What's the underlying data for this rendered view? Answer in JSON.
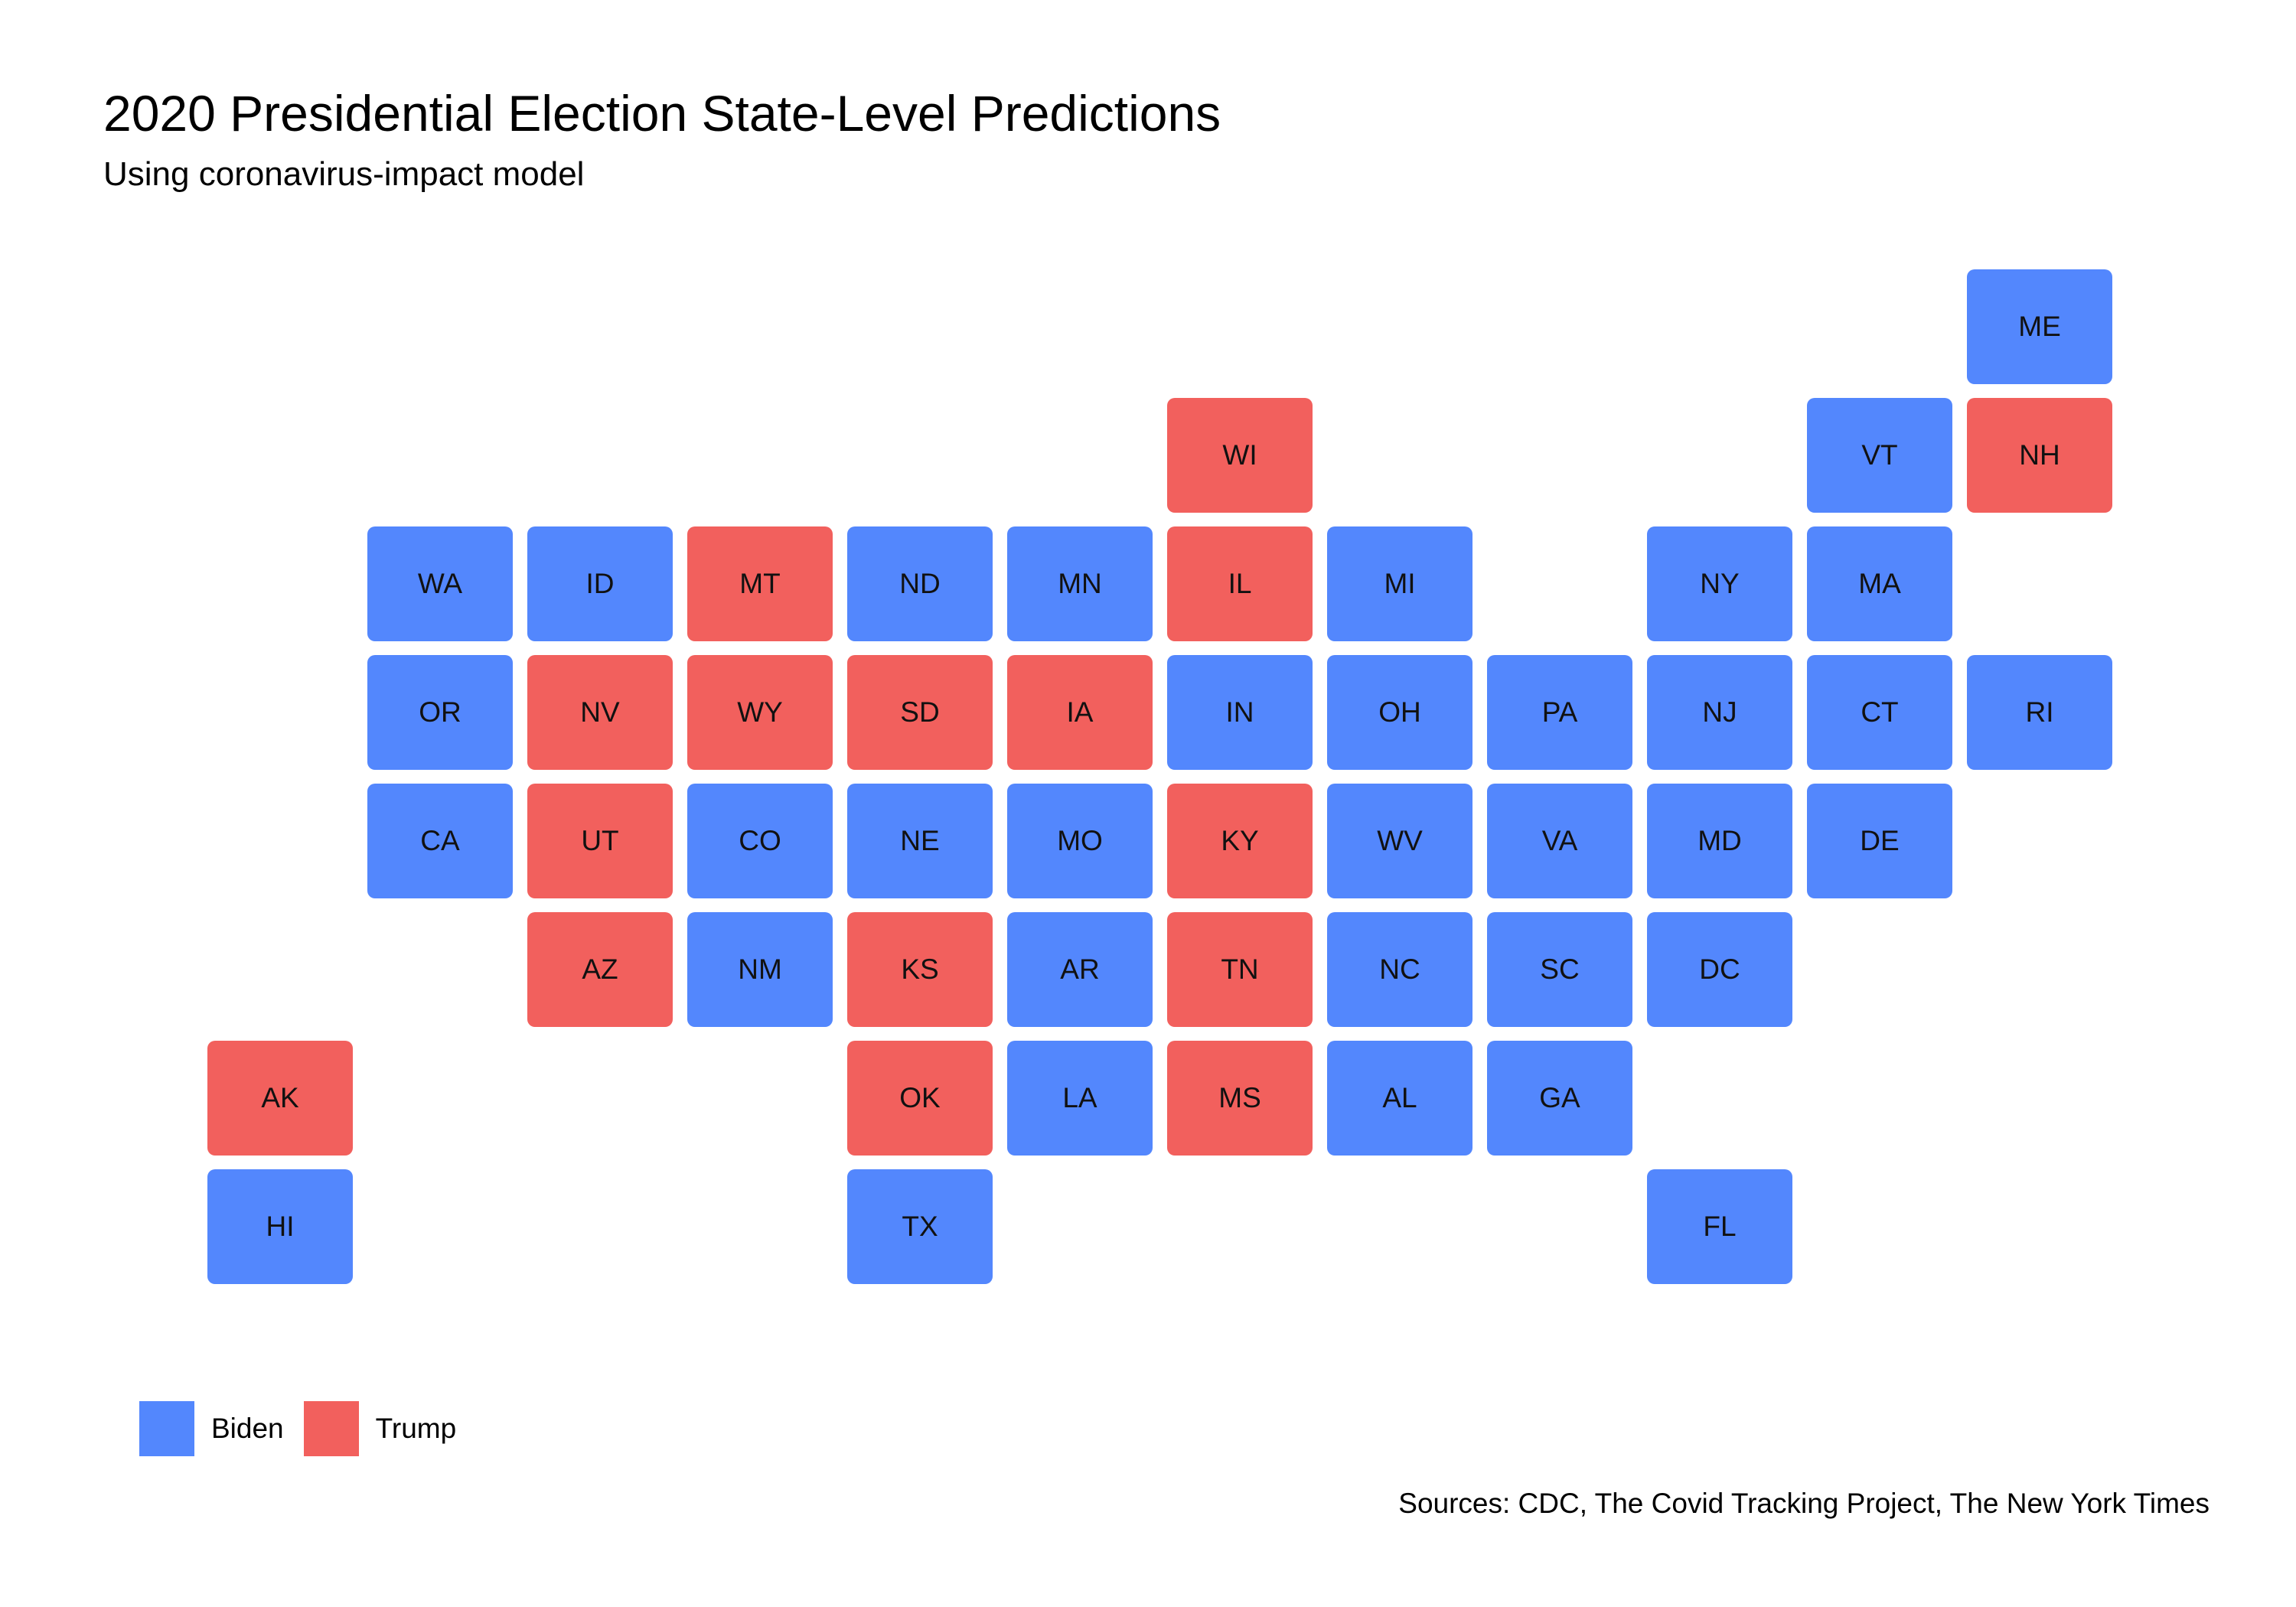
{
  "title": "2020 Presidential Election State-Level Predictions",
  "subtitle": "Using coronavirus-impact model",
  "caption": "Sources: CDC, The Covid Tracking Project, The New York Times",
  "colors": {
    "Biden": "#5387FD",
    "Trump": "#F2605D"
  },
  "legend": {
    "items": [
      {
        "label": "Biden",
        "color": "#5387FD"
      },
      {
        "label": "Trump",
        "color": "#F2605D"
      }
    ]
  },
  "chart_data": {
    "type": "tile-grid-map",
    "title": "2020 Presidential Election State-Level Predictions",
    "subtitle": "Using coronavirus-impact model",
    "legend_position": "bottom-left",
    "grid": {
      "columns": 12,
      "rows": 8
    },
    "tiles": [
      {
        "state": "ME",
        "col": 12,
        "row": 1,
        "winner": "Biden"
      },
      {
        "state": "WI",
        "col": 7,
        "row": 2,
        "winner": "Trump"
      },
      {
        "state": "VT",
        "col": 11,
        "row": 2,
        "winner": "Biden"
      },
      {
        "state": "NH",
        "col": 12,
        "row": 2,
        "winner": "Trump"
      },
      {
        "state": "WA",
        "col": 2,
        "row": 3,
        "winner": "Biden"
      },
      {
        "state": "ID",
        "col": 3,
        "row": 3,
        "winner": "Biden"
      },
      {
        "state": "MT",
        "col": 4,
        "row": 3,
        "winner": "Trump"
      },
      {
        "state": "ND",
        "col": 5,
        "row": 3,
        "winner": "Biden"
      },
      {
        "state": "MN",
        "col": 6,
        "row": 3,
        "winner": "Biden"
      },
      {
        "state": "IL",
        "col": 7,
        "row": 3,
        "winner": "Trump"
      },
      {
        "state": "MI",
        "col": 8,
        "row": 3,
        "winner": "Biden"
      },
      {
        "state": "NY",
        "col": 10,
        "row": 3,
        "winner": "Biden"
      },
      {
        "state": "MA",
        "col": 11,
        "row": 3,
        "winner": "Biden"
      },
      {
        "state": "OR",
        "col": 2,
        "row": 4,
        "winner": "Biden"
      },
      {
        "state": "NV",
        "col": 3,
        "row": 4,
        "winner": "Trump"
      },
      {
        "state": "WY",
        "col": 4,
        "row": 4,
        "winner": "Trump"
      },
      {
        "state": "SD",
        "col": 5,
        "row": 4,
        "winner": "Trump"
      },
      {
        "state": "IA",
        "col": 6,
        "row": 4,
        "winner": "Trump"
      },
      {
        "state": "IN",
        "col": 7,
        "row": 4,
        "winner": "Biden"
      },
      {
        "state": "OH",
        "col": 8,
        "row": 4,
        "winner": "Biden"
      },
      {
        "state": "PA",
        "col": 9,
        "row": 4,
        "winner": "Biden"
      },
      {
        "state": "NJ",
        "col": 10,
        "row": 4,
        "winner": "Biden"
      },
      {
        "state": "CT",
        "col": 11,
        "row": 4,
        "winner": "Biden"
      },
      {
        "state": "RI",
        "col": 12,
        "row": 4,
        "winner": "Biden"
      },
      {
        "state": "CA",
        "col": 2,
        "row": 5,
        "winner": "Biden"
      },
      {
        "state": "UT",
        "col": 3,
        "row": 5,
        "winner": "Trump"
      },
      {
        "state": "CO",
        "col": 4,
        "row": 5,
        "winner": "Biden"
      },
      {
        "state": "NE",
        "col": 5,
        "row": 5,
        "winner": "Biden"
      },
      {
        "state": "MO",
        "col": 6,
        "row": 5,
        "winner": "Biden"
      },
      {
        "state": "KY",
        "col": 7,
        "row": 5,
        "winner": "Trump"
      },
      {
        "state": "WV",
        "col": 8,
        "row": 5,
        "winner": "Biden"
      },
      {
        "state": "VA",
        "col": 9,
        "row": 5,
        "winner": "Biden"
      },
      {
        "state": "MD",
        "col": 10,
        "row": 5,
        "winner": "Biden"
      },
      {
        "state": "DE",
        "col": 11,
        "row": 5,
        "winner": "Biden"
      },
      {
        "state": "AZ",
        "col": 3,
        "row": 6,
        "winner": "Trump"
      },
      {
        "state": "NM",
        "col": 4,
        "row": 6,
        "winner": "Biden"
      },
      {
        "state": "KS",
        "col": 5,
        "row": 6,
        "winner": "Trump"
      },
      {
        "state": "AR",
        "col": 6,
        "row": 6,
        "winner": "Biden"
      },
      {
        "state": "TN",
        "col": 7,
        "row": 6,
        "winner": "Trump"
      },
      {
        "state": "NC",
        "col": 8,
        "row": 6,
        "winner": "Biden"
      },
      {
        "state": "SC",
        "col": 9,
        "row": 6,
        "winner": "Biden"
      },
      {
        "state": "DC",
        "col": 10,
        "row": 6,
        "winner": "Biden"
      },
      {
        "state": "AK",
        "col": 1,
        "row": 7,
        "winner": "Trump"
      },
      {
        "state": "OK",
        "col": 5,
        "row": 7,
        "winner": "Trump"
      },
      {
        "state": "LA",
        "col": 6,
        "row": 7,
        "winner": "Biden"
      },
      {
        "state": "MS",
        "col": 7,
        "row": 7,
        "winner": "Trump"
      },
      {
        "state": "AL",
        "col": 8,
        "row": 7,
        "winner": "Biden"
      },
      {
        "state": "GA",
        "col": 9,
        "row": 7,
        "winner": "Biden"
      },
      {
        "state": "HI",
        "col": 1,
        "row": 8,
        "winner": "Biden"
      },
      {
        "state": "TX",
        "col": 5,
        "row": 8,
        "winner": "Biden"
      },
      {
        "state": "FL",
        "col": 10,
        "row": 8,
        "winner": "Biden"
      }
    ]
  }
}
